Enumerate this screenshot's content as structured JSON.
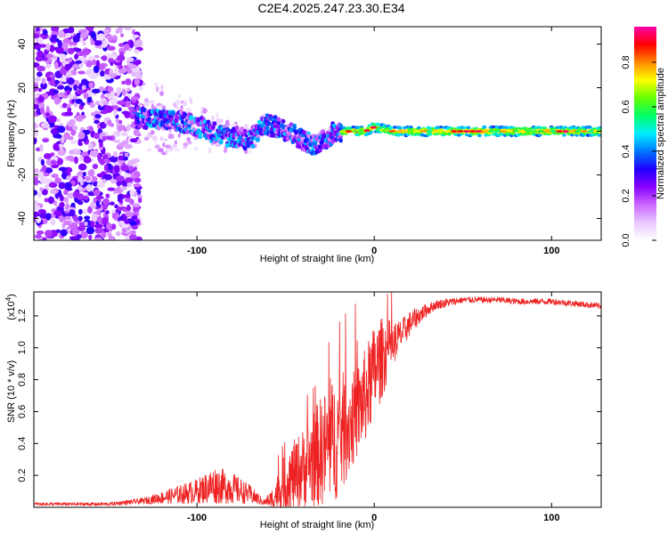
{
  "title": "C2E4.2025.247.23.30.E34",
  "chart_data": [
    {
      "type": "heatmap",
      "name": "spectrogram",
      "xlabel": "Height of straight line (km)",
      "ylabel": "Frequency (Hz)",
      "xlim": [
        -192,
        128
      ],
      "ylim": [
        -50,
        48
      ],
      "xticks": [
        -100,
        0,
        100
      ],
      "yticks": [
        -40,
        -20,
        0,
        20,
        40
      ],
      "xtick_labels": [
        "-100",
        "0",
        "100"
      ],
      "ytick_labels": [
        "-40",
        "-20",
        "0",
        "20",
        "40"
      ],
      "colorbar": {
        "label": "Normalized spectral amplitude",
        "range": [
          0.0,
          0.96
        ],
        "ticks": [
          0.0,
          0.2,
          0.4,
          0.6,
          0.8
        ],
        "tick_labels": [
          "0.0",
          "0.2",
          "0.4",
          "0.6",
          "0.8"
        ],
        "colors": [
          "#ffffff",
          "#e8c8ff",
          "#cc66ff",
          "#8800ff",
          "#1f00ff",
          "#0077ff",
          "#00eeff",
          "#00ff66",
          "#66ff00",
          "#ffff00",
          "#ff8800",
          "#ff0000",
          "#ff00aa"
        ]
      },
      "ridge": {
        "x": [
          -135,
          -120,
          -105,
          -95,
          -85,
          -75,
          -70,
          -62,
          -55,
          -48,
          -40,
          -35,
          -28,
          -22,
          -15,
          -5,
          0,
          5,
          10,
          20,
          40,
          60,
          80,
          100,
          128
        ],
        "y": [
          7,
          5,
          4,
          1,
          -2,
          -3,
          -4,
          3,
          2,
          0,
          -4,
          -6,
          -4,
          0,
          0,
          0,
          2,
          1,
          0,
          0,
          0,
          0,
          0,
          0,
          0
        ]
      }
    },
    {
      "type": "line",
      "name": "snr",
      "xlabel": "Height of straight line (km)",
      "ylabel": "SNR (10 * v/v)",
      "scale_label": "(x10",
      "scale_exp": "4",
      "scale_close": ")",
      "xlim": [
        -192,
        128
      ],
      "ylim": [
        0.0,
        1.35
      ],
      "xticks": [
        -100,
        0,
        100
      ],
      "yticks": [
        0.2,
        0.4,
        0.6,
        0.8,
        1.0,
        1.2
      ],
      "xtick_labels": [
        "-100",
        "0",
        "100"
      ],
      "ytick_labels": [
        "0.2",
        "0.4",
        "0.6",
        "0.8",
        "1.0",
        "1.2"
      ],
      "color": "#ee2222",
      "series": [
        {
          "name": "SNR envelope",
          "x": [
            -192,
            -150,
            -130,
            -120,
            -110,
            -100,
            -90,
            -80,
            -70,
            -62,
            -58,
            -50,
            -40,
            -30,
            -20,
            -12,
            -5,
            0,
            5,
            10,
            15,
            20,
            25,
            30,
            35,
            40,
            50,
            60,
            70,
            80,
            90,
            100,
            110,
            120,
            128
          ],
          "base": [
            0.02,
            0.02,
            0.04,
            0.06,
            0.08,
            0.1,
            0.14,
            0.12,
            0.08,
            0.03,
            0.05,
            0.15,
            0.25,
            0.35,
            0.45,
            0.55,
            0.7,
            0.85,
            0.95,
            1.02,
            1.08,
            1.15,
            1.2,
            1.24,
            1.27,
            1.28,
            1.3,
            1.3,
            1.3,
            1.29,
            1.29,
            1.29,
            1.28,
            1.27,
            1.26
          ],
          "noise": [
            0.01,
            0.01,
            0.02,
            0.04,
            0.06,
            0.08,
            0.12,
            0.1,
            0.06,
            0.02,
            0.06,
            0.2,
            0.25,
            0.35,
            0.4,
            0.3,
            0.3,
            0.3,
            0.25,
            0.15,
            0.1,
            0.08,
            0.06,
            0.04,
            0.03,
            0.03,
            0.02,
            0.02,
            0.02,
            0.02,
            0.02,
            0.02,
            0.02,
            0.02,
            0.02
          ]
        }
      ]
    }
  ]
}
